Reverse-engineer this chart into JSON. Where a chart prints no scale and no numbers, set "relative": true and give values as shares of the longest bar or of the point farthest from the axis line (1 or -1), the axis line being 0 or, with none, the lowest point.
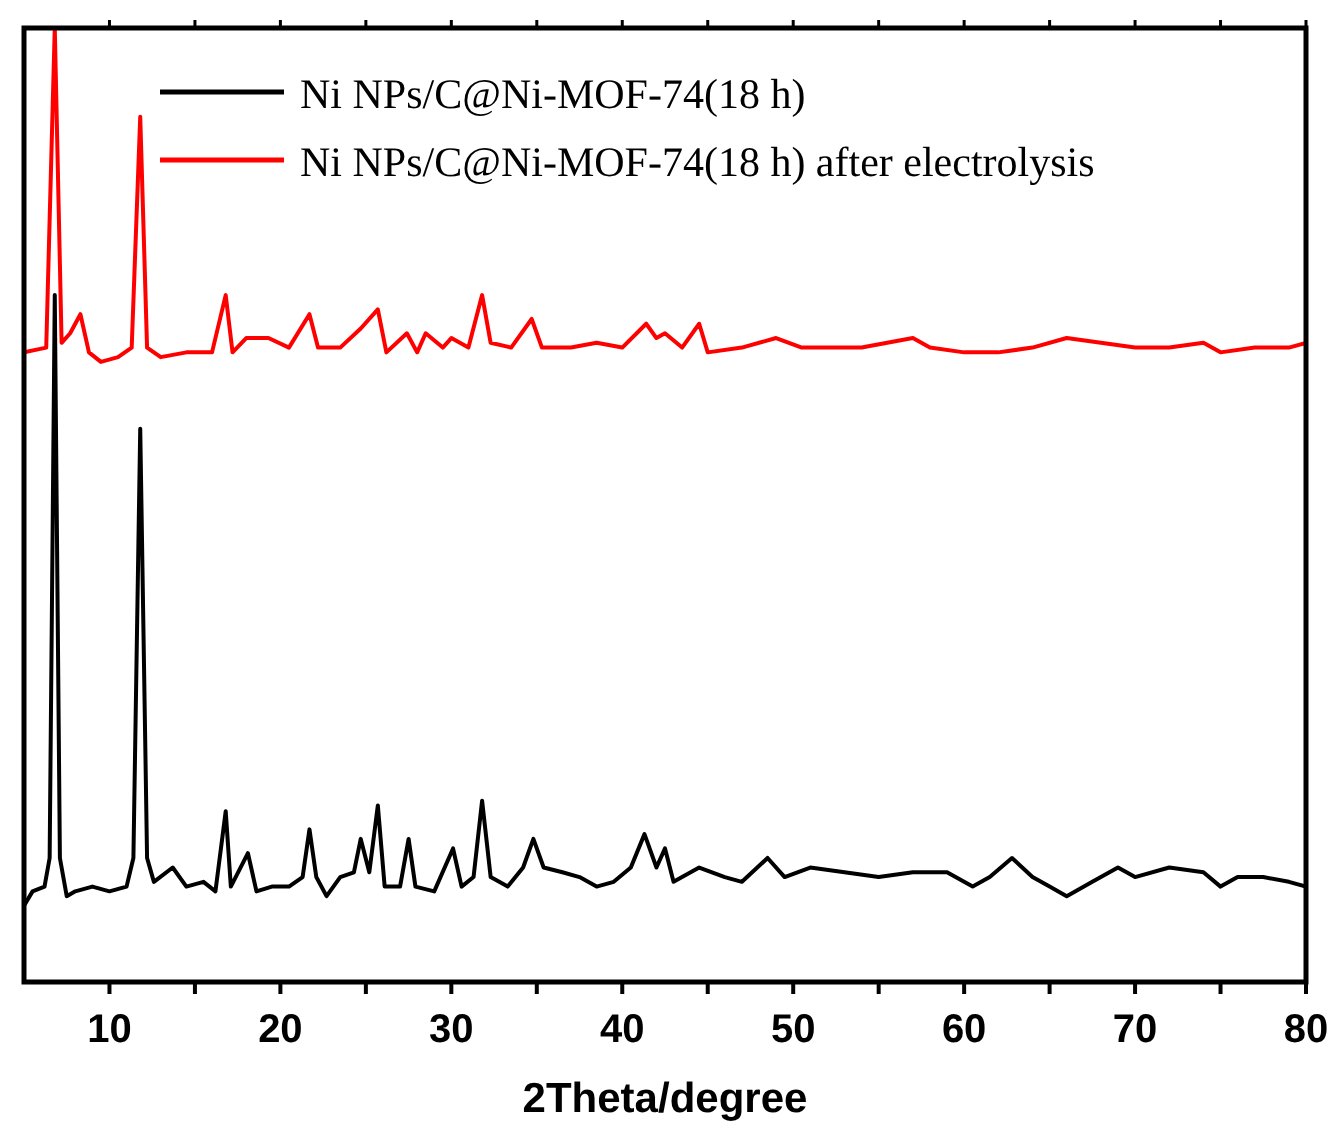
{
  "chart_data": {
    "type": "line",
    "xlabel": "2Theta/degree",
    "relative": true,
    "tick_labels": "x",
    "legend": "top",
    "xlim": [
      5,
      80
    ],
    "xticks": [
      10,
      {
        "value": 15,
        "label": null
      },
      20,
      {
        "value": 25,
        "label": null
      },
      30,
      {
        "value": 35,
        "label": null
      },
      40,
      {
        "value": 45,
        "label": null
      },
      50,
      {
        "value": 55,
        "label": null
      },
      60,
      {
        "value": 65,
        "label": null
      },
      70,
      {
        "value": 75,
        "label": null
      },
      80
    ],
    "x": [
      5,
      5.5,
      6.2,
      6.5,
      6.8,
      7.1,
      7.5,
      8,
      9,
      10,
      11,
      11.4,
      11.8,
      12.2,
      12.6,
      13.7,
      14.5,
      15.5,
      16.2,
      16.8,
      17.1,
      18.1,
      18.6,
      19.5,
      20.5,
      21.3,
      21.7,
      22.1,
      22.7,
      23.5,
      24.3,
      24.7,
      25.2,
      25.7,
      26.1,
      27,
      27.5,
      27.9,
      29,
      30.1,
      30.6,
      31.3,
      31.8,
      32.3,
      33.3,
      34.2,
      34.8,
      35.4,
      36.5,
      37.5,
      38.5,
      39.5,
      40.5,
      41.3,
      42,
      42.5,
      43,
      44.5,
      46,
      47,
      48.5,
      49.5,
      51,
      53,
      55,
      57,
      59,
      60.5,
      61.5,
      62.8,
      64,
      65,
      66,
      67.5,
      69,
      70,
      72,
      74,
      75,
      76,
      77.5,
      79,
      80
    ],
    "series": [
      {
        "name": "Ni NPs/C@Ni-MOF-74(18 h)",
        "color": "#000000",
        "values": [
          0.08,
          0.095,
          0.1,
          0.13,
          0.72,
          0.13,
          0.09,
          0.095,
          0.1,
          0.095,
          0.1,
          0.13,
          0.58,
          0.13,
          0.105,
          0.12,
          0.1,
          0.105,
          0.095,
          0.179,
          0.1,
          0.135,
          0.095,
          0.1,
          0.1,
          0.11,
          0.16,
          0.11,
          0.09,
          0.11,
          0.115,
          0.15,
          0.115,
          0.185,
          0.1,
          0.1,
          0.15,
          0.1,
          0.095,
          0.14,
          0.1,
          0.11,
          0.19,
          0.11,
          0.1,
          0.12,
          0.15,
          0.12,
          0.115,
          0.11,
          0.1,
          0.105,
          0.12,
          0.155,
          0.12,
          0.14,
          0.105,
          0.12,
          0.11,
          0.105,
          0.13,
          0.11,
          0.12,
          0.115,
          0.11,
          0.115,
          0.115,
          0.1,
          0.11,
          0.13,
          0.11,
          0.1,
          0.09,
          0.105,
          0.12,
          0.11,
          0.12,
          0.115,
          0.1,
          0.11,
          0.11,
          0.105,
          0.1
        ]
      },
      {
        "name": "Ni NPs/C@Ni-MOF-74(18 h) after electrolysis",
        "color": "#ff0000",
        "x": [
          5,
          6.3,
          6.8,
          7.2,
          7.7,
          8.3,
          8.8,
          9.5,
          10.5,
          11.3,
          11.8,
          12.2,
          13,
          14.5,
          16,
          16.8,
          17.2,
          18,
          19.3,
          20.5,
          21.7,
          22.2,
          23.5,
          24.7,
          25.7,
          26.2,
          27.4,
          28,
          28.5,
          29.5,
          30,
          31,
          31.8,
          32.3,
          33.5,
          34.7,
          35.3,
          37,
          38.5,
          40,
          41.4,
          42,
          42.5,
          43.5,
          44.5,
          45,
          47,
          49,
          50.5,
          52,
          54,
          57,
          58,
          60,
          62,
          64,
          66,
          68,
          70,
          72,
          74,
          75,
          77,
          79,
          80
        ],
        "values": [
          0.66,
          0.665,
          1.0,
          0.67,
          0.68,
          0.7,
          0.66,
          0.65,
          0.655,
          0.665,
          0.907,
          0.665,
          0.655,
          0.66,
          0.66,
          0.72,
          0.66,
          0.675,
          0.675,
          0.665,
          0.7,
          0.665,
          0.665,
          0.685,
          0.705,
          0.66,
          0.68,
          0.66,
          0.68,
          0.665,
          0.675,
          0.665,
          0.72,
          0.67,
          0.665,
          0.695,
          0.665,
          0.665,
          0.67,
          0.665,
          0.69,
          0.675,
          0.68,
          0.665,
          0.69,
          0.66,
          0.665,
          0.675,
          0.665,
          0.665,
          0.665,
          0.675,
          0.665,
          0.66,
          0.66,
          0.665,
          0.675,
          0.67,
          0.665,
          0.665,
          0.67,
          0.66,
          0.665,
          0.665,
          0.67
        ]
      }
    ]
  }
}
